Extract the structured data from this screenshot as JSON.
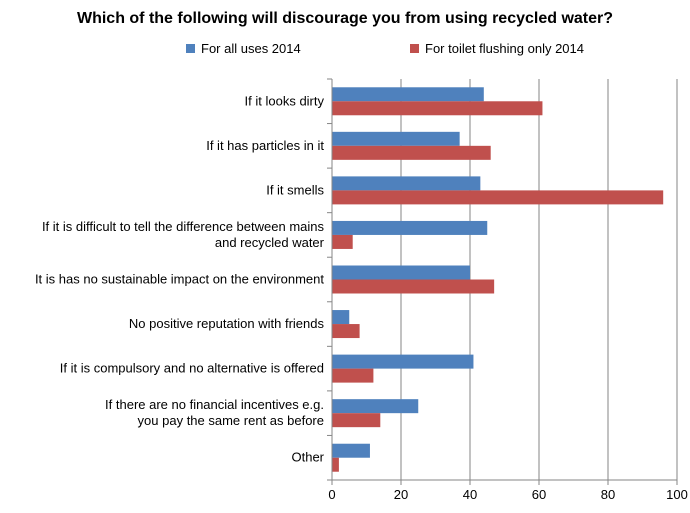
{
  "chart_data": {
    "type": "bar",
    "orientation": "horizontal",
    "title": "Which of the following will discourage you from using recycled water?",
    "categories": [
      [
        "If it looks dirty"
      ],
      [
        "If it has particles in it"
      ],
      [
        "If it smells"
      ],
      [
        "If it is difficult to tell the difference between mains",
        "and recycled water"
      ],
      [
        "It is has no sustainable impact on the environment"
      ],
      [
        "No positive reputation with friends"
      ],
      [
        "If it is compulsory and no alternative is offered"
      ],
      [
        "If there are no financial incentives e.g.",
        "you pay the same rent as before"
      ],
      [
        "Other"
      ]
    ],
    "series": [
      {
        "name": "For all uses 2014",
        "color": "#4F81BD",
        "values": [
          44,
          37,
          43,
          45,
          40,
          5,
          41,
          25,
          11
        ]
      },
      {
        "name": "For toilet flushing only 2014",
        "color": "#C0504D",
        "values": [
          61,
          46,
          96,
          6,
          47,
          8,
          12,
          14,
          2
        ]
      }
    ],
    "xlim": [
      0,
      100
    ],
    "xticks": [
      "0",
      "20",
      "40",
      "60",
      "80",
      "100"
    ],
    "xtick_values": [
      0,
      20,
      40,
      60,
      80,
      100
    ],
    "grid": "vertical",
    "legend_position": "top"
  }
}
